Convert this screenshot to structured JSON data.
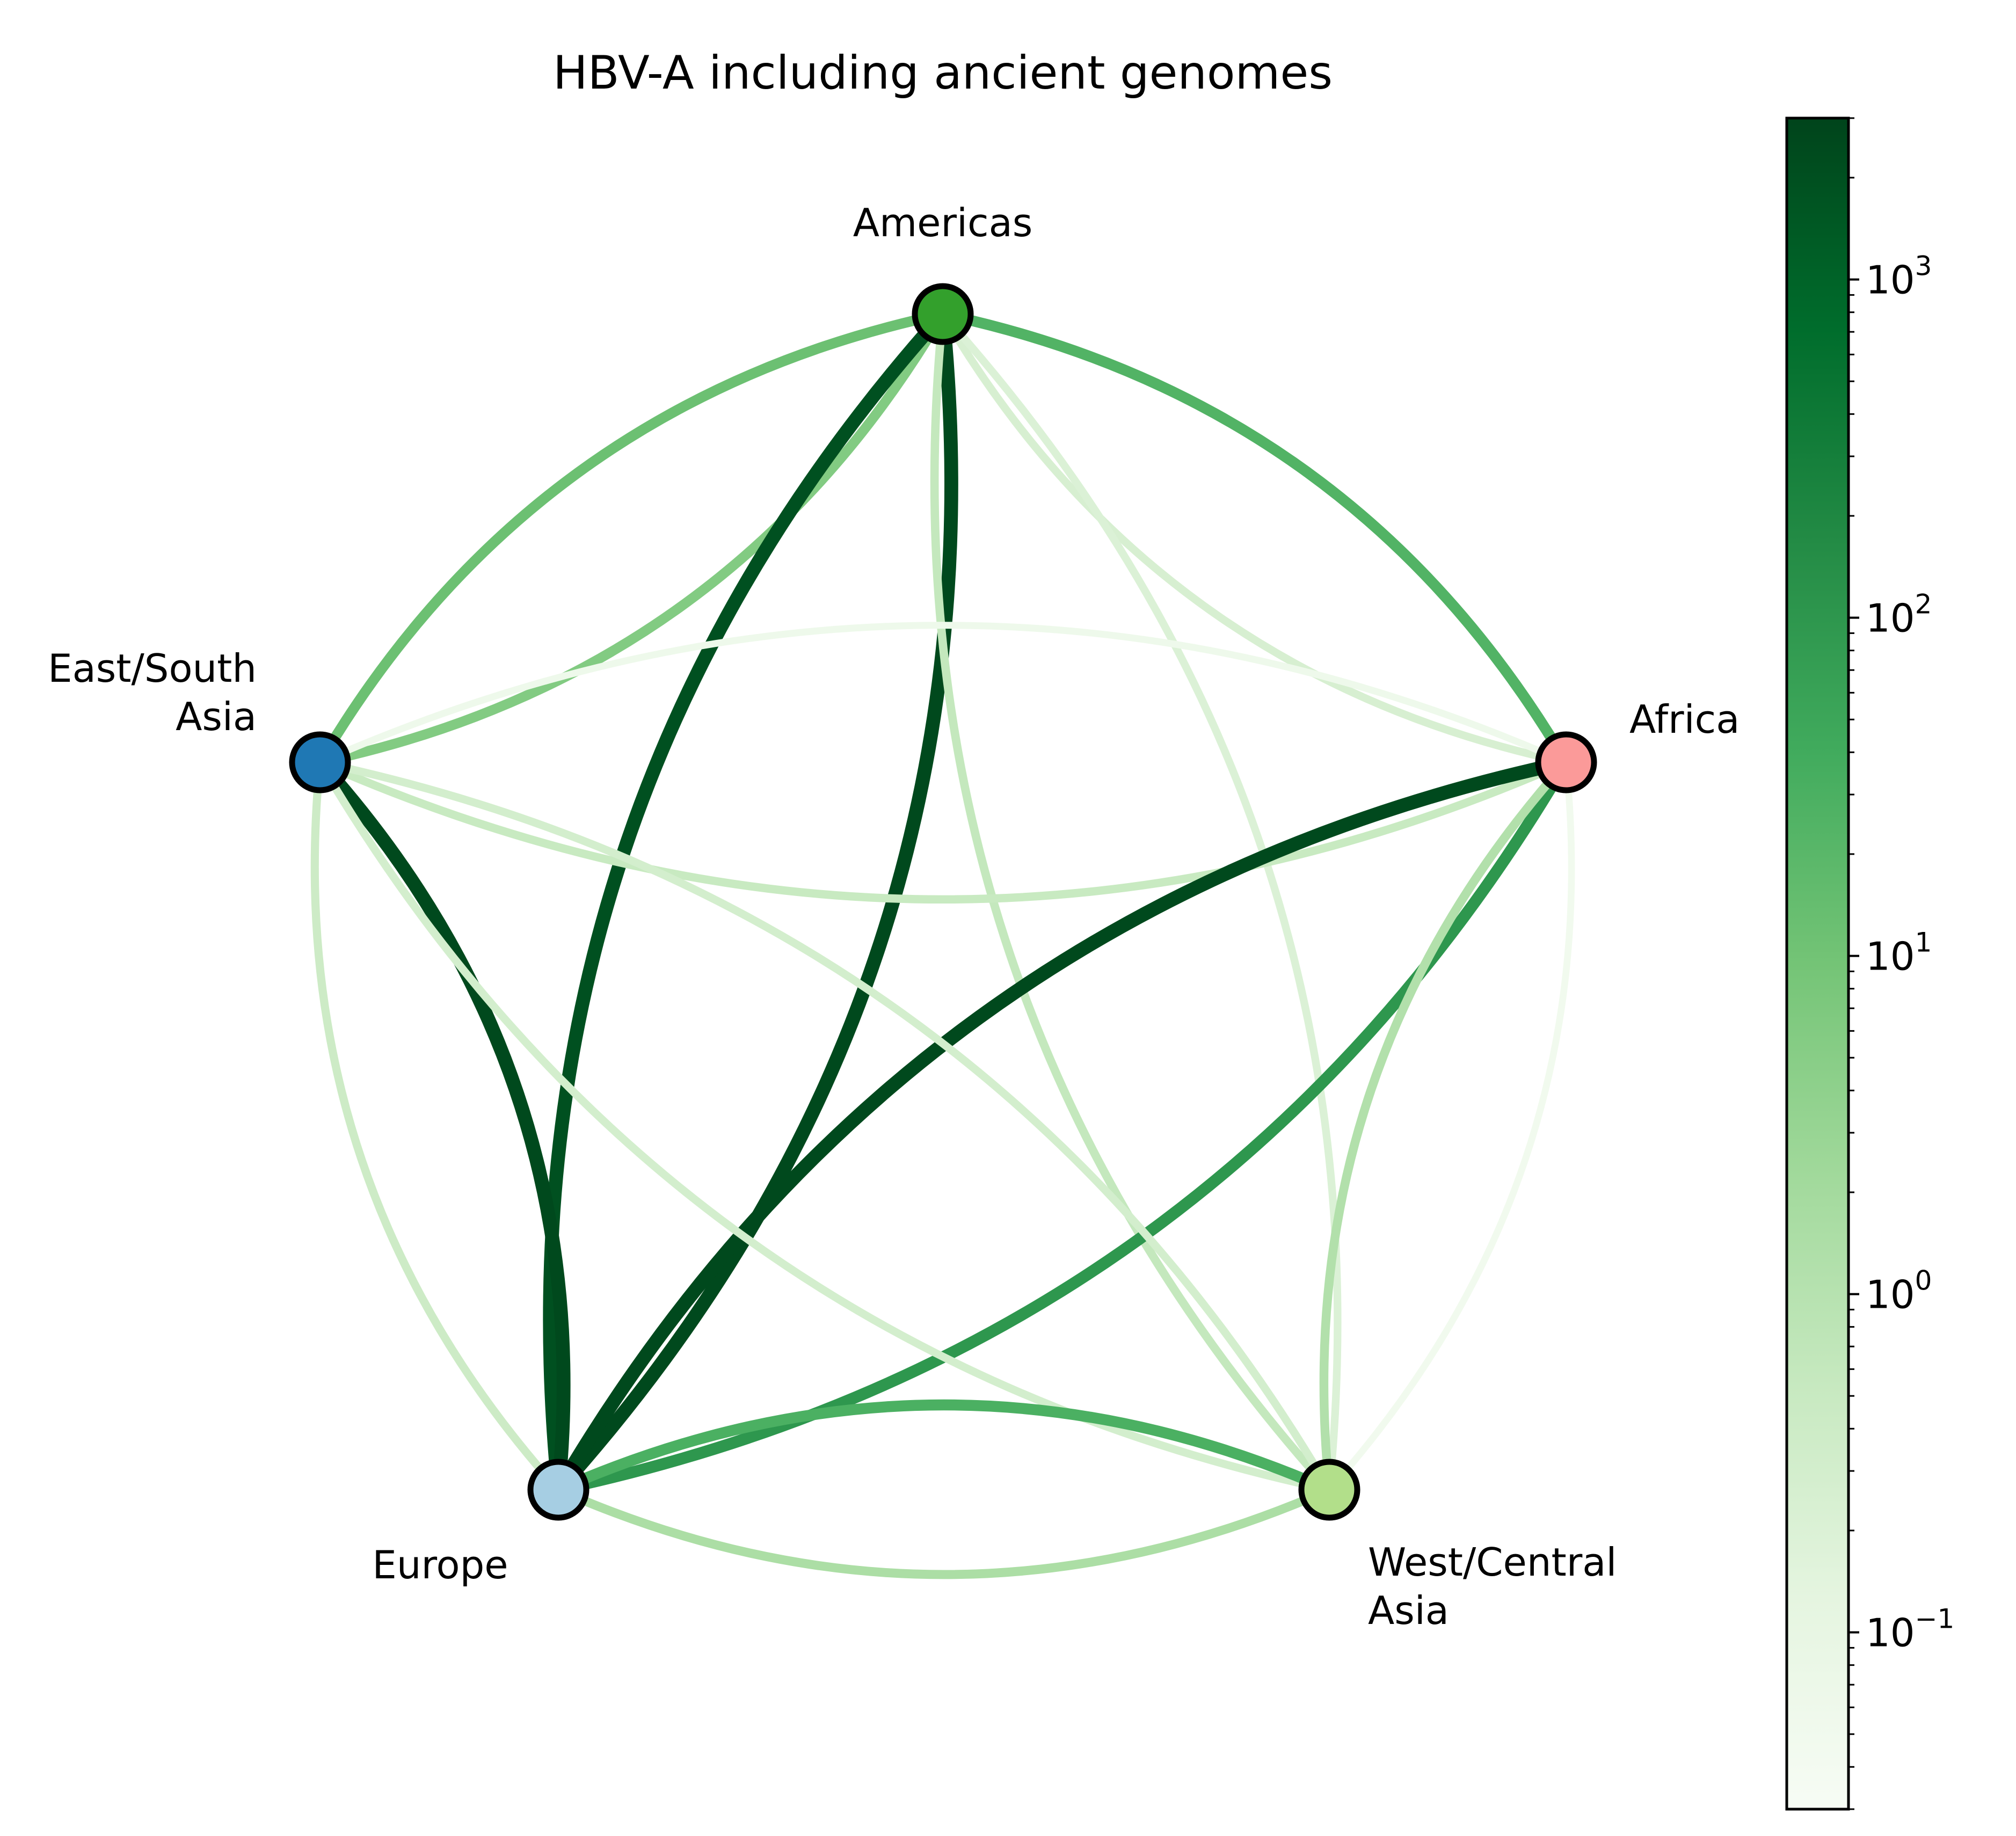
{
  "title": "HBV-A including ancient genomes",
  "nodes": [
    {
      "id": "americas",
      "label_lines": [
        "Americas"
      ],
      "color": "#33a02c"
    },
    {
      "id": "africa",
      "label_lines": [
        "Africa"
      ],
      "color": "#fb9a99"
    },
    {
      "id": "west_central_asia",
      "label_lines": [
        "West/Central",
        "Asia"
      ],
      "color": "#b2df8a"
    },
    {
      "id": "europe",
      "label_lines": [
        "Europe"
      ],
      "color": "#a6cee3"
    },
    {
      "id": "east_south_asia",
      "label_lines": [
        "East/South",
        "Asia"
      ],
      "color": "#1f78b4"
    }
  ],
  "edges": [
    {
      "from": "east_south_asia",
      "to": "americas",
      "value": 12
    },
    {
      "from": "americas",
      "to": "east_south_asia",
      "value": 6
    },
    {
      "from": "americas",
      "to": "africa",
      "value": 25
    },
    {
      "from": "africa",
      "to": "americas",
      "value": 0.25
    },
    {
      "from": "europe",
      "to": "americas",
      "value": 2000
    },
    {
      "from": "americas",
      "to": "europe",
      "value": 2500
    },
    {
      "from": "americas",
      "to": "west_central_asia",
      "value": 0.2
    },
    {
      "from": "west_central_asia",
      "to": "americas",
      "value": 0.6
    },
    {
      "from": "east_south_asia",
      "to": "africa",
      "value": 0.06
    },
    {
      "from": "africa",
      "to": "east_south_asia",
      "value": 0.5
    },
    {
      "from": "europe",
      "to": "africa",
      "value": 2500
    },
    {
      "from": "africa",
      "to": "europe",
      "value": 100
    },
    {
      "from": "west_central_asia",
      "to": "africa",
      "value": 1.2
    },
    {
      "from": "africa",
      "to": "west_central_asia",
      "value": 0.05
    },
    {
      "from": "east_south_asia",
      "to": "europe",
      "value": 2500
    },
    {
      "from": "europe",
      "to": "east_south_asia",
      "value": 0.4
    },
    {
      "from": "east_south_asia",
      "to": "west_central_asia",
      "value": 0.3
    },
    {
      "from": "west_central_asia",
      "to": "east_south_asia",
      "value": 0.3
    },
    {
      "from": "europe",
      "to": "west_central_asia",
      "value": 30
    },
    {
      "from": "west_central_asia",
      "to": "europe",
      "value": 1.5
    }
  ],
  "colorbar": {
    "scale": "log",
    "range": [
      0.03,
      3000
    ],
    "colormap": "Greens",
    "major_ticks": [
      {
        "value": 0.1,
        "base": "10",
        "exp": "−1"
      },
      {
        "value": 1,
        "base": "10",
        "exp": "0"
      },
      {
        "value": 10,
        "base": "10",
        "exp": "1"
      },
      {
        "value": 100,
        "base": "10",
        "exp": "2"
      },
      {
        "value": 1000,
        "base": "10",
        "exp": "3"
      }
    ]
  }
}
